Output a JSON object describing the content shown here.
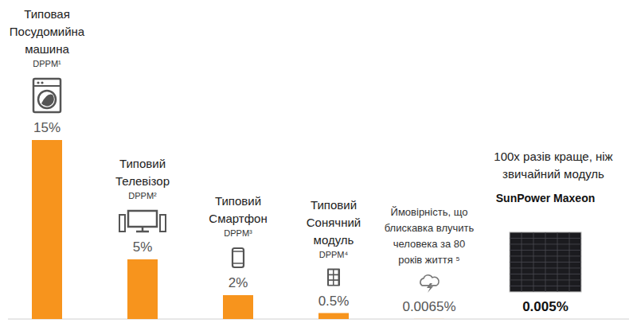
{
  "chart_data": {
    "type": "bar",
    "categories": [
      "Типовая Посудомийна машина",
      "Типовий Телевізор",
      "Типовий Смартфон",
      "Типовий Сонячний модуль",
      "Ймовірність, що блискавка влучить человека за 80 років життя ⁵",
      "SunPower Maxeon"
    ],
    "category_notes": [
      "DPPM¹",
      "DPPM²",
      "DPPM³",
      "DPPM⁴",
      null,
      null
    ],
    "annotation": "100x разів краще, ніж звичайний модуль",
    "values": [
      15,
      5,
      2,
      0.5,
      0.0065,
      0.005
    ],
    "value_labels": [
      "15%",
      "5%",
      "2%",
      "0.5%",
      "0.0065%",
      "0.005%"
    ],
    "data_labels": true,
    "color": "#f7941d",
    "ylim": [
      0,
      15
    ],
    "tick_labels": false,
    "grid": false
  }
}
